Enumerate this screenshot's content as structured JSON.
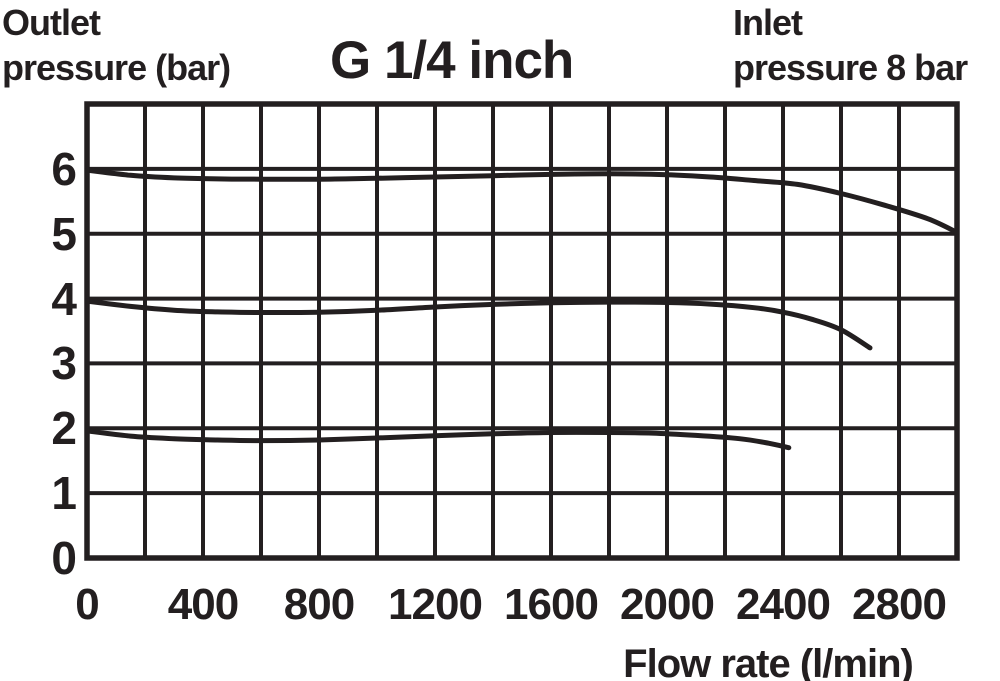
{
  "style": {
    "ink": "#231f20",
    "background": "#ffffff"
  },
  "labels": {
    "y_axis_title_line1": "Outlet",
    "y_axis_title_line2": "pressure (bar)",
    "title": "G 1/4 inch",
    "inlet_line1": "Inlet",
    "inlet_line2": "pressure 8 bar",
    "x_axis_title": "Flow rate (l/min)"
  },
  "chart_data": {
    "type": "line",
    "title": "G 1/4 inch",
    "xlabel": "Flow rate (l/min)",
    "ylabel": "Outlet pressure (bar)",
    "annotation": "Inlet pressure 8 bar",
    "xlim": [
      0,
      3000
    ],
    "ylim": [
      0,
      7
    ],
    "x_grid_step": 200,
    "y_grid_step": 1,
    "grid": true,
    "legend": false,
    "x_tick_labels": [
      0,
      400,
      800,
      1200,
      1600,
      2000,
      2400,
      2800
    ],
    "y_tick_labels": [
      0,
      1,
      2,
      3,
      4,
      5,
      6
    ],
    "series": [
      {
        "name": "outlet-setting-6-bar",
        "points": [
          [
            0,
            5.98
          ],
          [
            150,
            5.9
          ],
          [
            300,
            5.86
          ],
          [
            450,
            5.845
          ],
          [
            600,
            5.84
          ],
          [
            800,
            5.84
          ],
          [
            1000,
            5.855
          ],
          [
            1200,
            5.875
          ],
          [
            1400,
            5.895
          ],
          [
            1600,
            5.915
          ],
          [
            1800,
            5.925
          ],
          [
            2000,
            5.91
          ],
          [
            2150,
            5.875
          ],
          [
            2300,
            5.82
          ],
          [
            2450,
            5.76
          ],
          [
            2600,
            5.62
          ],
          [
            2750,
            5.44
          ],
          [
            2900,
            5.23
          ],
          [
            3000,
            5.02
          ]
        ]
      },
      {
        "name": "outlet-setting-4-bar",
        "points": [
          [
            0,
            3.96
          ],
          [
            150,
            3.88
          ],
          [
            300,
            3.82
          ],
          [
            450,
            3.795
          ],
          [
            600,
            3.785
          ],
          [
            800,
            3.79
          ],
          [
            1000,
            3.82
          ],
          [
            1200,
            3.87
          ],
          [
            1400,
            3.91
          ],
          [
            1600,
            3.935
          ],
          [
            1800,
            3.945
          ],
          [
            2000,
            3.94
          ],
          [
            2150,
            3.915
          ],
          [
            2300,
            3.86
          ],
          [
            2400,
            3.79
          ],
          [
            2500,
            3.68
          ],
          [
            2600,
            3.52
          ],
          [
            2700,
            3.24
          ]
        ]
      },
      {
        "name": "outlet-setting-2-bar",
        "points": [
          [
            0,
            1.96
          ],
          [
            150,
            1.88
          ],
          [
            300,
            1.84
          ],
          [
            450,
            1.82
          ],
          [
            600,
            1.81
          ],
          [
            800,
            1.82
          ],
          [
            1000,
            1.85
          ],
          [
            1200,
            1.885
          ],
          [
            1400,
            1.915
          ],
          [
            1600,
            1.935
          ],
          [
            1800,
            1.935
          ],
          [
            1950,
            1.925
          ],
          [
            2100,
            1.89
          ],
          [
            2250,
            1.84
          ],
          [
            2350,
            1.77
          ],
          [
            2420,
            1.7
          ]
        ]
      }
    ]
  }
}
